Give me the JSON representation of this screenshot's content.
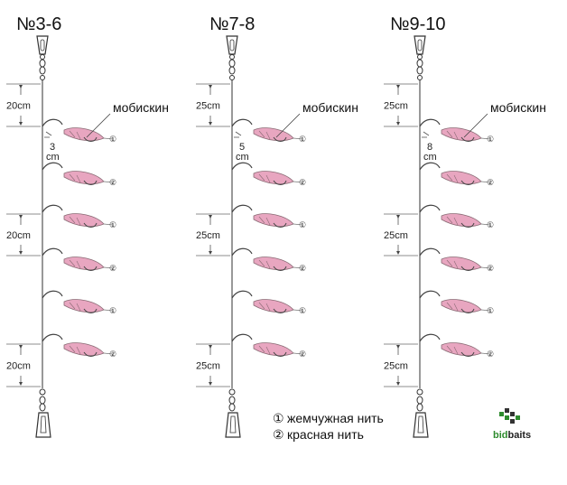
{
  "rigs": [
    {
      "title": "№3-6",
      "lure_label": "мобискин",
      "top_spacing": "20cm",
      "mid_spacing": "20cm",
      "bottom_spacing": "20cm",
      "leader_len_num": "3",
      "leader_len_unit": "cm",
      "hooks": [
        "①",
        "②",
        "①",
        "②",
        "①",
        "②"
      ]
    },
    {
      "title": "№7-8",
      "lure_label": "мобискин",
      "top_spacing": "25cm",
      "mid_spacing": "25cm",
      "bottom_spacing": "25cm",
      "leader_len_num": "5",
      "leader_len_unit": "cm",
      "hooks": [
        "①",
        "②",
        "①",
        "②",
        "①",
        "②"
      ]
    },
    {
      "title": "№9-10",
      "lure_label": "мобискин",
      "top_spacing": "25cm",
      "mid_spacing": "25cm",
      "bottom_spacing": "25cm",
      "leader_len_num": "8",
      "leader_len_unit": "cm",
      "hooks": [
        "①",
        "②",
        "①",
        "②",
        "①",
        "②"
      ]
    }
  ],
  "legend": [
    {
      "mark": "①",
      "text": "жемчужная нить"
    },
    {
      "mark": "②",
      "text": "красная нить"
    }
  ],
  "logo": {
    "part1": "bid",
    "part2": "baits"
  },
  "colors": {
    "lure": "#e8a6c0",
    "lure_stroke": "#8a6a74",
    "line": "#555555",
    "logo_green": "#2e8b2e"
  }
}
